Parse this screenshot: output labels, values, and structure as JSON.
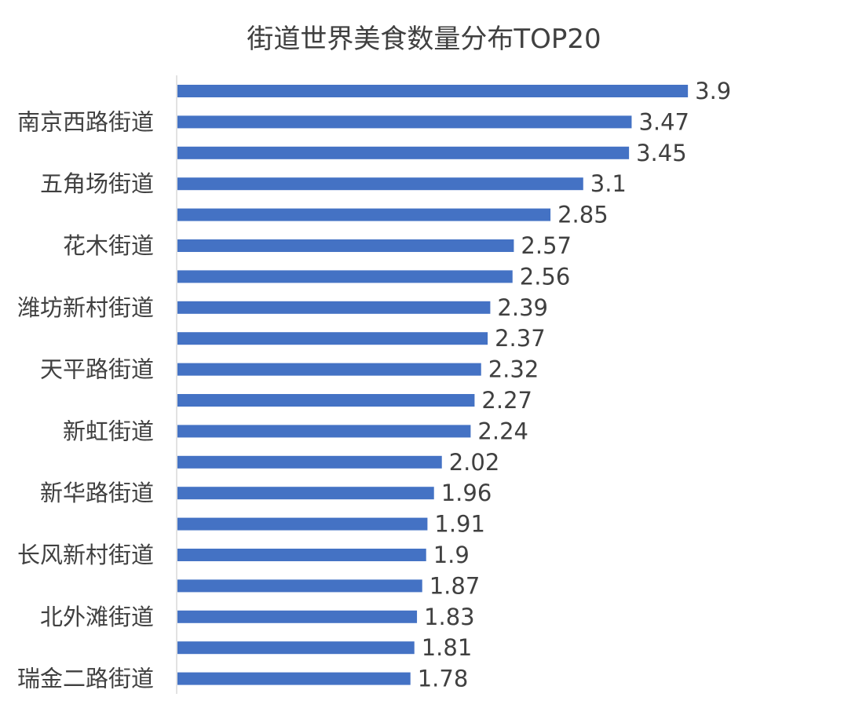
{
  "chart_data": {
    "type": "bar",
    "orientation": "horizontal",
    "title": "街道世界美食数量分布TOP20",
    "categories": [
      "",
      "南京西路街道",
      "",
      "五角场街道",
      "",
      "花木街道",
      "",
      "潍坊新村街道",
      "",
      "天平路街道",
      "",
      "新虹街道",
      "",
      "新华路街道",
      "",
      "长风新村街道",
      "",
      "北外滩街道",
      "",
      "瑞金二路街道"
    ],
    "values": [
      3.9,
      3.47,
      3.45,
      3.1,
      2.85,
      2.57,
      2.56,
      2.39,
      2.37,
      2.32,
      2.27,
      2.24,
      2.02,
      1.96,
      1.91,
      1.9,
      1.87,
      1.83,
      1.81,
      1.78
    ],
    "value_labels": [
      "3.9",
      "3.47",
      "3.45",
      "3.1",
      "2.85",
      "2.57",
      "2.56",
      "2.39",
      "2.37",
      "2.32",
      "2.27",
      "2.24",
      "2.02",
      "1.96",
      "1.91",
      "1.9",
      "1.87",
      "1.83",
      "1.81",
      "1.78"
    ],
    "xlim": [
      0,
      4.0
    ],
    "grid": false,
    "legend": "none",
    "bar_color": "#4472C4"
  }
}
